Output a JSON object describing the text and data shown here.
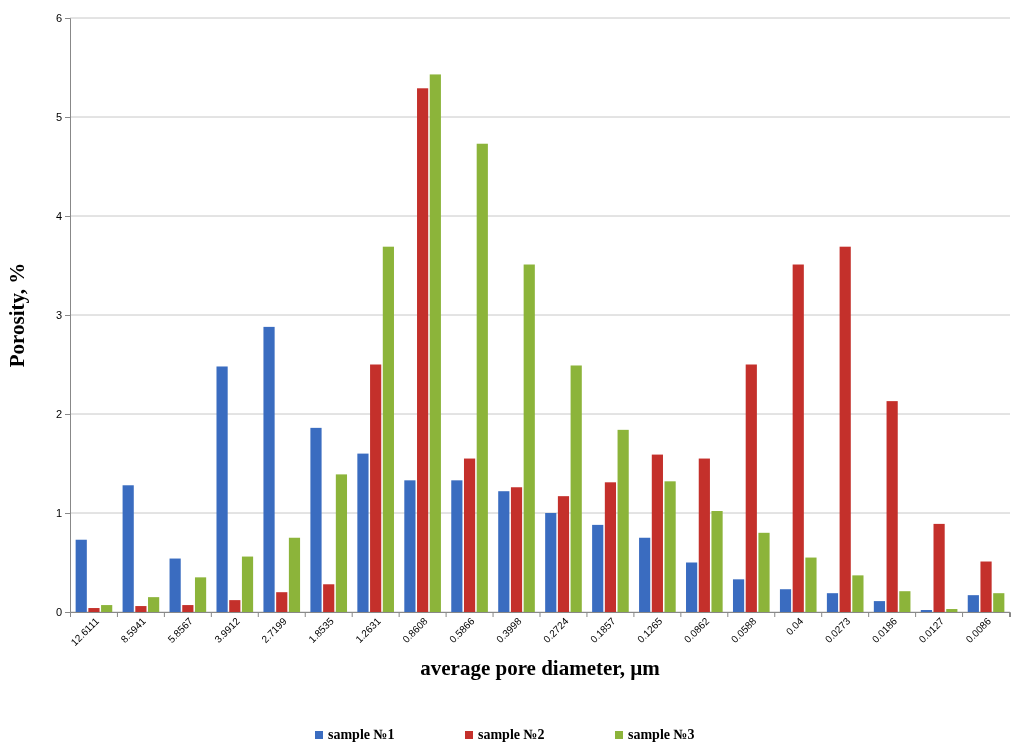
{
  "chart_data": {
    "type": "bar",
    "xlabel": "average pore diameter, µm",
    "ylabel": "Porosity, %",
    "categories": [
      "12.6111",
      "8.5941",
      "5.8567",
      "3.9912",
      "2.7199",
      "1.8535",
      "1.2631",
      "0.8608",
      "0.5866",
      "0.3998",
      "0.2724",
      "0.1857",
      "0.1265",
      "0.0862",
      "0.0588",
      "0.04",
      "0.0273",
      "0.0186",
      "0.0127",
      "0.0086"
    ],
    "series": [
      {
        "name": "sample №1",
        "color": "#3a6cc0",
        "values": [
          0.73,
          1.28,
          0.54,
          2.48,
          2.88,
          1.86,
          1.6,
          1.33,
          1.33,
          1.22,
          1.0,
          0.88,
          0.75,
          0.5,
          0.33,
          0.23,
          0.19,
          0.11,
          0.02,
          0.17
        ]
      },
      {
        "name": "sample №2",
        "color": "#c4302b",
        "values": [
          0.04,
          0.06,
          0.07,
          0.12,
          0.2,
          0.28,
          2.5,
          5.29,
          1.55,
          1.26,
          1.17,
          1.31,
          1.59,
          1.55,
          2.5,
          3.51,
          3.69,
          2.13,
          0.89,
          0.51
        ]
      },
      {
        "name": "sample №3",
        "color": "#8cb43a",
        "values": [
          0.07,
          0.15,
          0.35,
          0.56,
          0.75,
          1.39,
          3.69,
          5.43,
          4.73,
          3.51,
          2.49,
          1.84,
          1.32,
          1.02,
          0.8,
          0.55,
          0.37,
          0.21,
          0.03,
          0.19
        ]
      }
    ],
    "ylim": [
      0,
      6
    ],
    "yticks": [
      0,
      1,
      2,
      3,
      4,
      5,
      6
    ],
    "grid": "y",
    "legend": "bottom"
  }
}
